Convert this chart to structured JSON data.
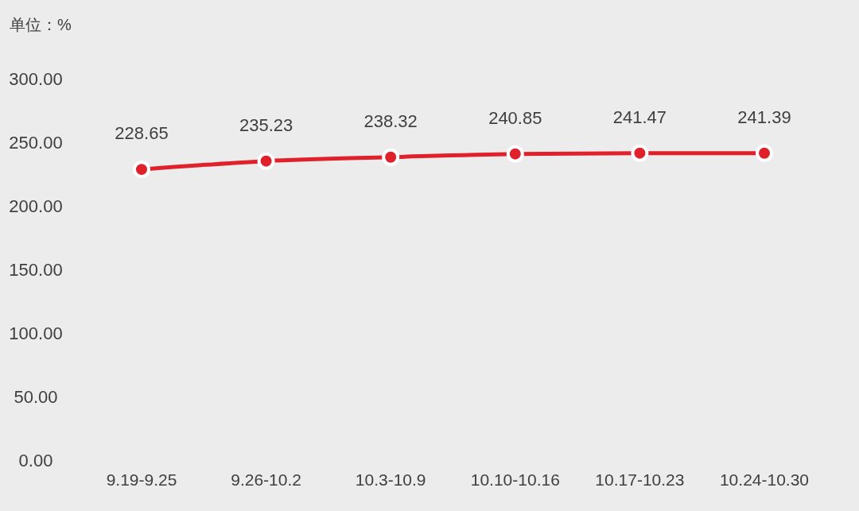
{
  "chart_data": {
    "type": "line",
    "ylabel": "单位：%",
    "categories": [
      "9.19-9.25",
      "9.26-10.2",
      "10.3-10.9",
      "10.10-10.16",
      "10.17-10.23",
      "10.24-10.30"
    ],
    "series": [
      {
        "color": "#e0202a",
        "values": [
          228.65,
          235.23,
          238.32,
          240.85,
          241.47,
          241.39
        ]
      }
    ],
    "ylim": [
      0,
      300
    ],
    "yticks": [
      {
        "value": 0,
        "label": "0.00"
      },
      {
        "value": 50,
        "label": "50.00"
      },
      {
        "value": 100,
        "label": "100.00"
      },
      {
        "value": 150,
        "label": "150.00"
      },
      {
        "value": 200,
        "label": "200.00"
      },
      {
        "value": 250,
        "label": "250.00"
      },
      {
        "value": 300,
        "label": "300.00"
      }
    ],
    "grid": false,
    "marker": "circle",
    "line_style": "solid",
    "data_labels": true
  }
}
